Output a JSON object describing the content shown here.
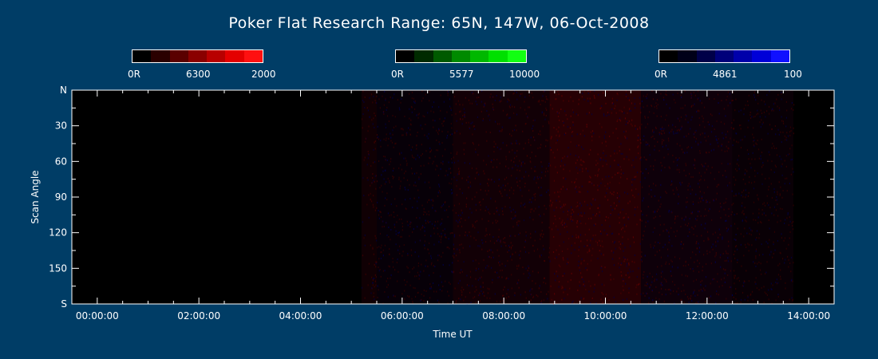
{
  "title": "Poker Flat Research Range: 65N, 147W, 06-Oct-2008",
  "colorbars": [
    {
      "labels": [
        "0R",
        "6300",
        "2000"
      ],
      "colors": [
        "#000000",
        "#2a0000",
        "#5a0000",
        "#8a0000",
        "#b80000",
        "#e40000",
        "#ff1010"
      ]
    },
    {
      "labels": [
        "0R",
        "5577",
        "10000"
      ],
      "colors": [
        "#000000",
        "#002a00",
        "#005a00",
        "#008a00",
        "#00b800",
        "#00e000",
        "#12ff12"
      ]
    },
    {
      "labels": [
        "0R",
        "4861",
        "100"
      ],
      "colors": [
        "#000000",
        "#000018",
        "#000048",
        "#00007a",
        "#0000aa",
        "#0000d8",
        "#1010ff"
      ]
    }
  ],
  "chart_data": {
    "type": "heatmap",
    "xlabel": "Time UT",
    "ylabel": "Scan Angle",
    "x_ticks": [
      "00:00:00",
      "02:00:00",
      "04:00:00",
      "06:00:00",
      "08:00:00",
      "10:00:00",
      "12:00:00",
      "14:00:00"
    ],
    "x_range_hours": [
      -0.5,
      14.5
    ],
    "y_ticks": [
      {
        "value": 0,
        "label": "N"
      },
      {
        "value": 30,
        "label": "30"
      },
      {
        "value": 60,
        "label": "60"
      },
      {
        "value": 90,
        "label": "90"
      },
      {
        "value": 120,
        "label": "120"
      },
      {
        "value": 150,
        "label": "150"
      },
      {
        "value": 180,
        "label": "S"
      }
    ],
    "y_range_deg": [
      0,
      180
    ],
    "data_end_hour": 13.7,
    "emission_bands": [
      {
        "start_hour": 5.2,
        "end_hour": 5.5,
        "red": 0.18,
        "blue": 0.05
      },
      {
        "start_hour": 5.5,
        "end_hour": 7.0,
        "red": 0.08,
        "blue": 0.12
      },
      {
        "start_hour": 7.0,
        "end_hour": 8.9,
        "red": 0.2,
        "blue": 0.08
      },
      {
        "start_hour": 8.9,
        "end_hour": 10.7,
        "red": 0.42,
        "blue": 0.05
      },
      {
        "start_hour": 10.7,
        "end_hour": 12.5,
        "red": 0.15,
        "blue": 0.14
      },
      {
        "start_hour": 12.5,
        "end_hour": 13.7,
        "red": 0.1,
        "blue": 0.08
      }
    ]
  }
}
